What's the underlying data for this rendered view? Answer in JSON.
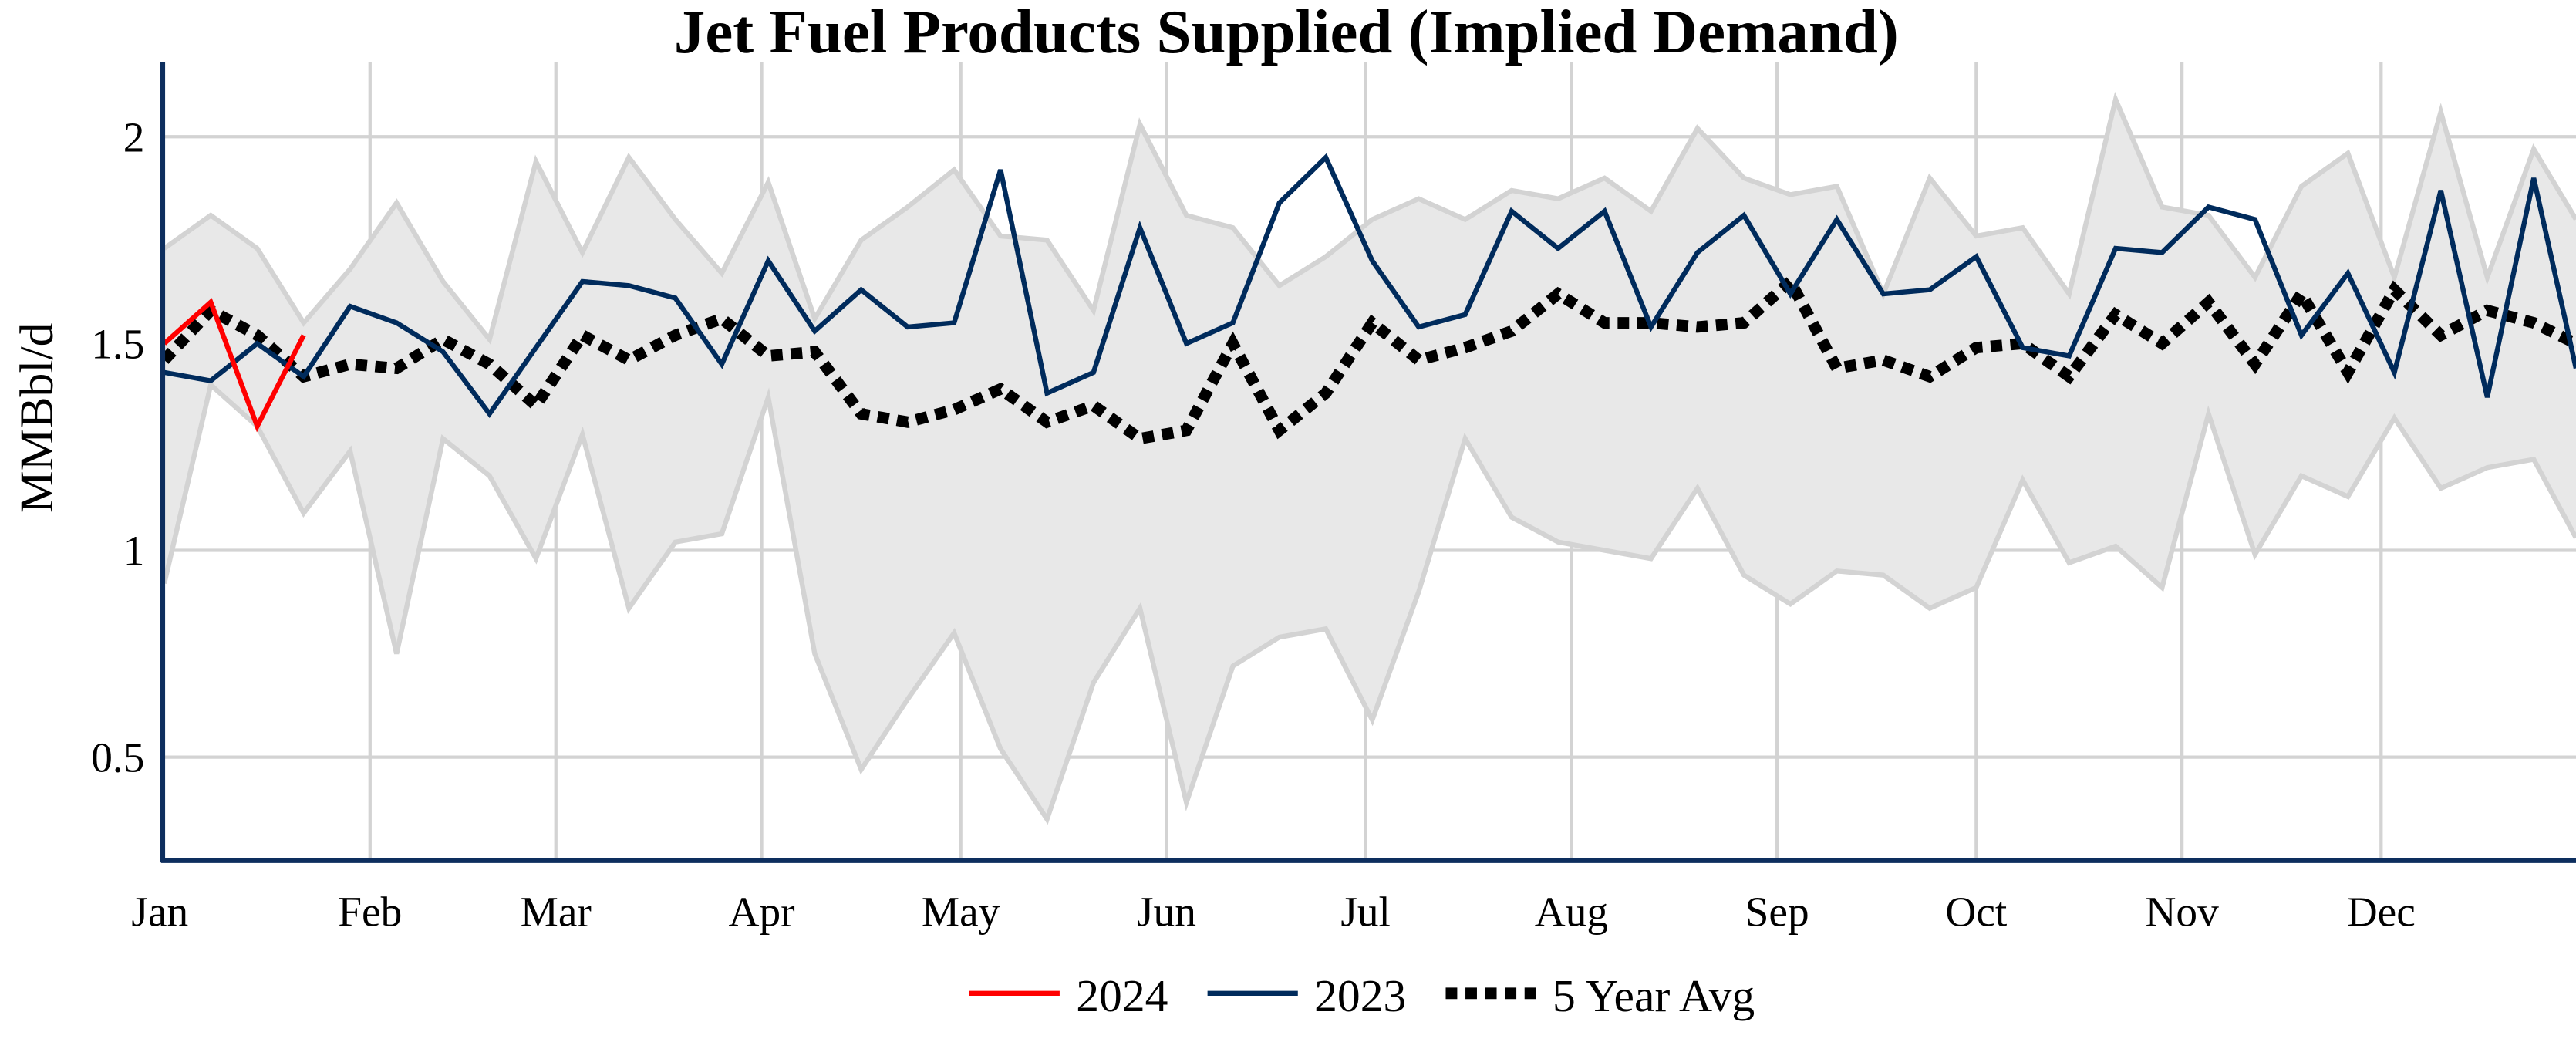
{
  "chart_data": {
    "type": "line",
    "title": "Jet Fuel Products Supplied (Implied Demand)",
    "xlabel": "",
    "ylabel": "MMBbl/d",
    "ylim": [
      0.25,
      2.18
    ],
    "yticks": [
      0.5,
      1,
      1.5,
      2
    ],
    "ytick_labels": [
      "0.5",
      "1",
      "1.5",
      "2"
    ],
    "xtick_labels": [
      "Jan",
      "Feb",
      "Mar",
      "Apr",
      "May",
      "Jun",
      "Jul",
      "Aug",
      "Sep",
      "Oct",
      "Nov",
      "Dec"
    ],
    "xtick_days": [
      0,
      31,
      59,
      90,
      120,
      151,
      181,
      212,
      243,
      273,
      304,
      334
    ],
    "x_step_days": 7,
    "grid": true,
    "legend_position": "bottom",
    "colors": {
      "2024": "#ff0000",
      "2023": "#002b5c",
      "avg": "#000000",
      "range": "#e8e8e8",
      "range_line": "#d3d3d3",
      "axis": "#0d2e5e",
      "grid": "#d3d3d3"
    },
    "range_band": {
      "max": [
        1.73,
        1.81,
        1.73,
        1.55,
        1.68,
        1.84,
        1.65,
        1.51,
        1.94,
        1.72,
        1.95,
        1.8,
        1.67,
        1.89,
        1.56,
        1.75,
        1.83,
        1.92,
        1.76,
        1.75,
        1.58,
        2.03,
        1.81,
        1.78,
        1.64,
        1.71,
        1.8,
        1.85,
        1.8,
        1.87,
        1.85,
        1.9,
        1.82,
        2.02,
        1.9,
        1.86,
        1.88,
        1.62,
        1.9,
        1.76,
        1.78,
        1.62,
        2.09,
        1.83,
        1.81,
        1.66,
        1.88,
        1.96,
        1.66,
        2.06,
        1.66,
        1.97,
        1.8
      ],
      "min": [
        0.92,
        1.4,
        1.3,
        1.09,
        1.24,
        0.75,
        1.27,
        1.18,
        0.98,
        1.28,
        0.86,
        1.02,
        1.04,
        1.37,
        0.75,
        0.47,
        0.64,
        0.8,
        0.52,
        0.35,
        0.68,
        0.86,
        0.39,
        0.72,
        0.79,
        0.81,
        0.59,
        0.9,
        1.27,
        1.08,
        1.02,
        1.0,
        0.98,
        1.15,
        0.94,
        0.87,
        0.95,
        0.94,
        0.86,
        0.91,
        1.17,
        0.97,
        1.01,
        0.91,
        1.33,
        0.99,
        1.18,
        1.13,
        1.32,
        1.15,
        1.2,
        1.22,
        1.03
      ]
    },
    "series": [
      {
        "name": "2024",
        "values": [
          1.5,
          1.6,
          1.3,
          1.52
        ]
      },
      {
        "name": "2023",
        "values": [
          1.43,
          1.41,
          1.5,
          1.42,
          1.59,
          1.55,
          1.48,
          1.33,
          1.49,
          1.65,
          1.64,
          1.61,
          1.45,
          1.7,
          1.53,
          1.63,
          1.54,
          1.55,
          1.92,
          1.38,
          1.43,
          1.78,
          1.5,
          1.55,
          1.84,
          1.95,
          1.7,
          1.54,
          1.57,
          1.82,
          1.73,
          1.82,
          1.54,
          1.72,
          1.81,
          1.62,
          1.8,
          1.62,
          1.63,
          1.71,
          1.49,
          1.47,
          1.73,
          1.72,
          1.83,
          1.8,
          1.52,
          1.67,
          1.43,
          1.87,
          1.37,
          1.9,
          1.44
        ]
      },
      {
        "name": "5 Year Avg",
        "values": [
          1.46,
          1.58,
          1.52,
          1.42,
          1.45,
          1.44,
          1.51,
          1.45,
          1.35,
          1.52,
          1.46,
          1.52,
          1.56,
          1.47,
          1.48,
          1.33,
          1.31,
          1.34,
          1.39,
          1.31,
          1.35,
          1.27,
          1.29,
          1.5,
          1.29,
          1.38,
          1.55,
          1.46,
          1.49,
          1.53,
          1.62,
          1.55,
          1.55,
          1.54,
          1.55,
          1.65,
          1.44,
          1.46,
          1.42,
          1.49,
          1.5,
          1.42,
          1.57,
          1.5,
          1.6,
          1.45,
          1.62,
          1.43,
          1.63,
          1.52,
          1.58,
          1.55,
          1.5
        ]
      }
    ]
  }
}
